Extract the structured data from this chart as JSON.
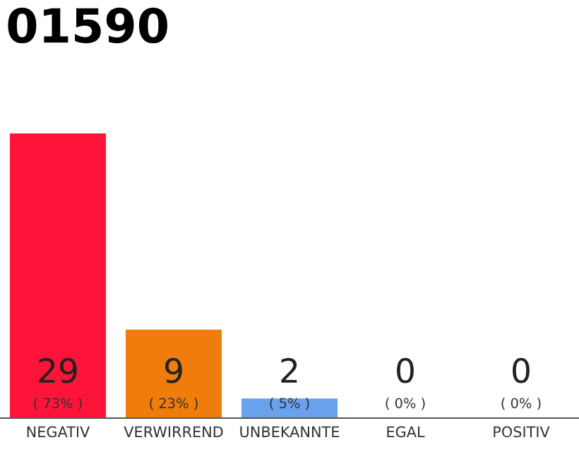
{
  "chart_data": {
    "type": "bar",
    "title": "01590",
    "categories": [
      "NEGATIV",
      "VERWIRREND",
      "UNBEKANNTE",
      "EGAL",
      "POSITIV"
    ],
    "values": [
      29,
      9,
      2,
      0,
      0
    ],
    "colors": [
      "#ff1439",
      "#f07c0c",
      "#6aa1ec",
      "#cccccc",
      "#cccccc"
    ],
    "value_labels": [
      "29\n( 73% )",
      "9\n( 23% )",
      "2\n( 5% )",
      "0\n( 0% )",
      "0\n( 0% )"
    ],
    "grid": false,
    "legend": false
  }
}
